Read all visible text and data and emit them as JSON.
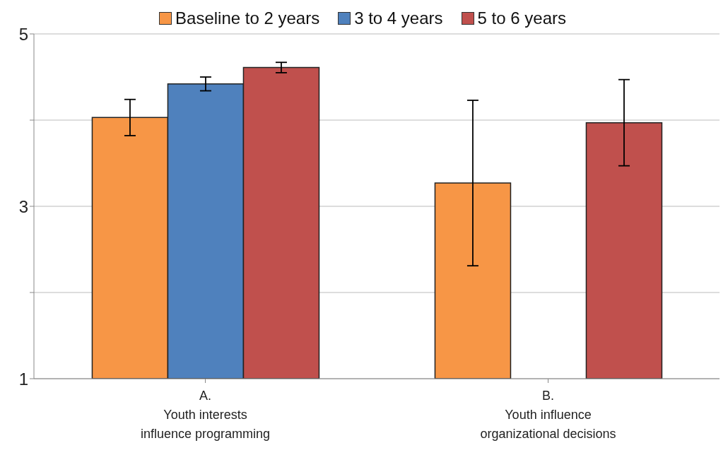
{
  "chart_data": {
    "type": "bar",
    "categories": [
      "A.\nYouth interests\ninfluence programming",
      "B.\nYouth influence\norganizational decisions"
    ],
    "series": [
      {
        "name": "Baseline to 2 years",
        "color": "#f79646",
        "values": [
          4.03,
          3.27
        ],
        "errors": [
          0.21,
          0.96
        ]
      },
      {
        "name": "3 to 4 years",
        "color": "#4f81bd",
        "values": [
          4.42,
          null
        ],
        "errors": [
          0.08,
          null
        ]
      },
      {
        "name": "5 to 6 years",
        "color": "#c0504d",
        "values": [
          4.61,
          3.97
        ],
        "errors": [
          0.06,
          0.5
        ]
      }
    ],
    "ylim": [
      1,
      5
    ],
    "yticks": [
      1,
      {
        "value": 2,
        "label": null
      },
      3,
      {
        "value": 4,
        "label": null
      },
      5
    ],
    "grid": "y",
    "legend": "top"
  }
}
